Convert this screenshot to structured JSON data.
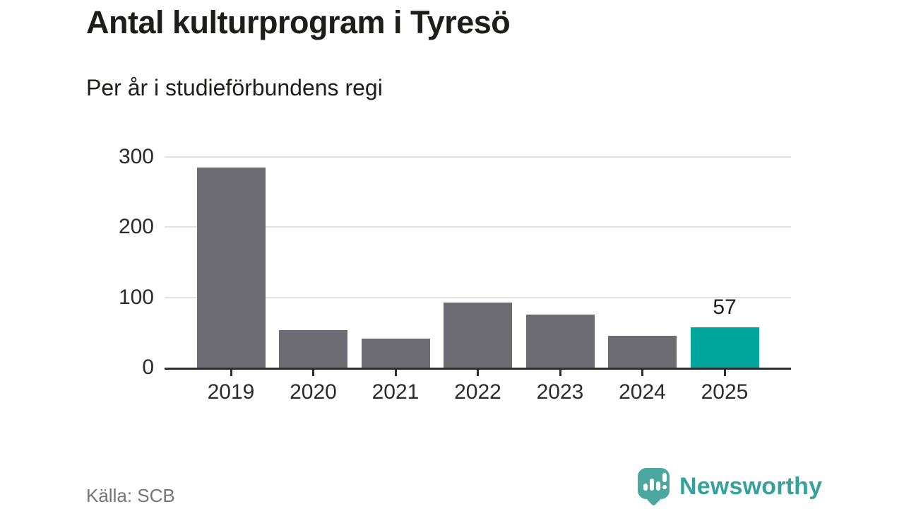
{
  "header": {
    "title": "Antal kulturprogram i Tyresö",
    "subtitle": "Per år i studieförbundens regi"
  },
  "chart_data": {
    "type": "bar",
    "categories": [
      "2019",
      "2020",
      "2021",
      "2022",
      "2023",
      "2024",
      "2025"
    ],
    "values": [
      285,
      53,
      41,
      93,
      75,
      45,
      57
    ],
    "value_labels": [
      null,
      null,
      null,
      null,
      null,
      null,
      "57"
    ],
    "highlight_index": 6,
    "title": "Antal kulturprogram i Tyresö",
    "subtitle": "Per år i studieförbundens regi",
    "xlabel": "",
    "ylabel": "",
    "ylim": [
      0,
      300
    ],
    "yticks": [
      0,
      100,
      200,
      300
    ],
    "grid": "horizontal-only",
    "legend": "none",
    "bar_color": "#6c6c72",
    "highlight_color": "#00a69b"
  },
  "footer": {
    "source": "Källa: SCB",
    "brand": "Newsworthy"
  },
  "colors": {
    "background": "#ffffff",
    "bar_gray": "#6c6c72",
    "accent_teal": "#00a69b",
    "gridline": "#e2e2e2",
    "axis": "#2e2e2e",
    "tick_label": "#2b2b2b",
    "title_text": "#1d1d1b",
    "source_text": "#757575",
    "brand_teal": "#35a19a",
    "brand_icon_teal": "#4ba7a0"
  }
}
